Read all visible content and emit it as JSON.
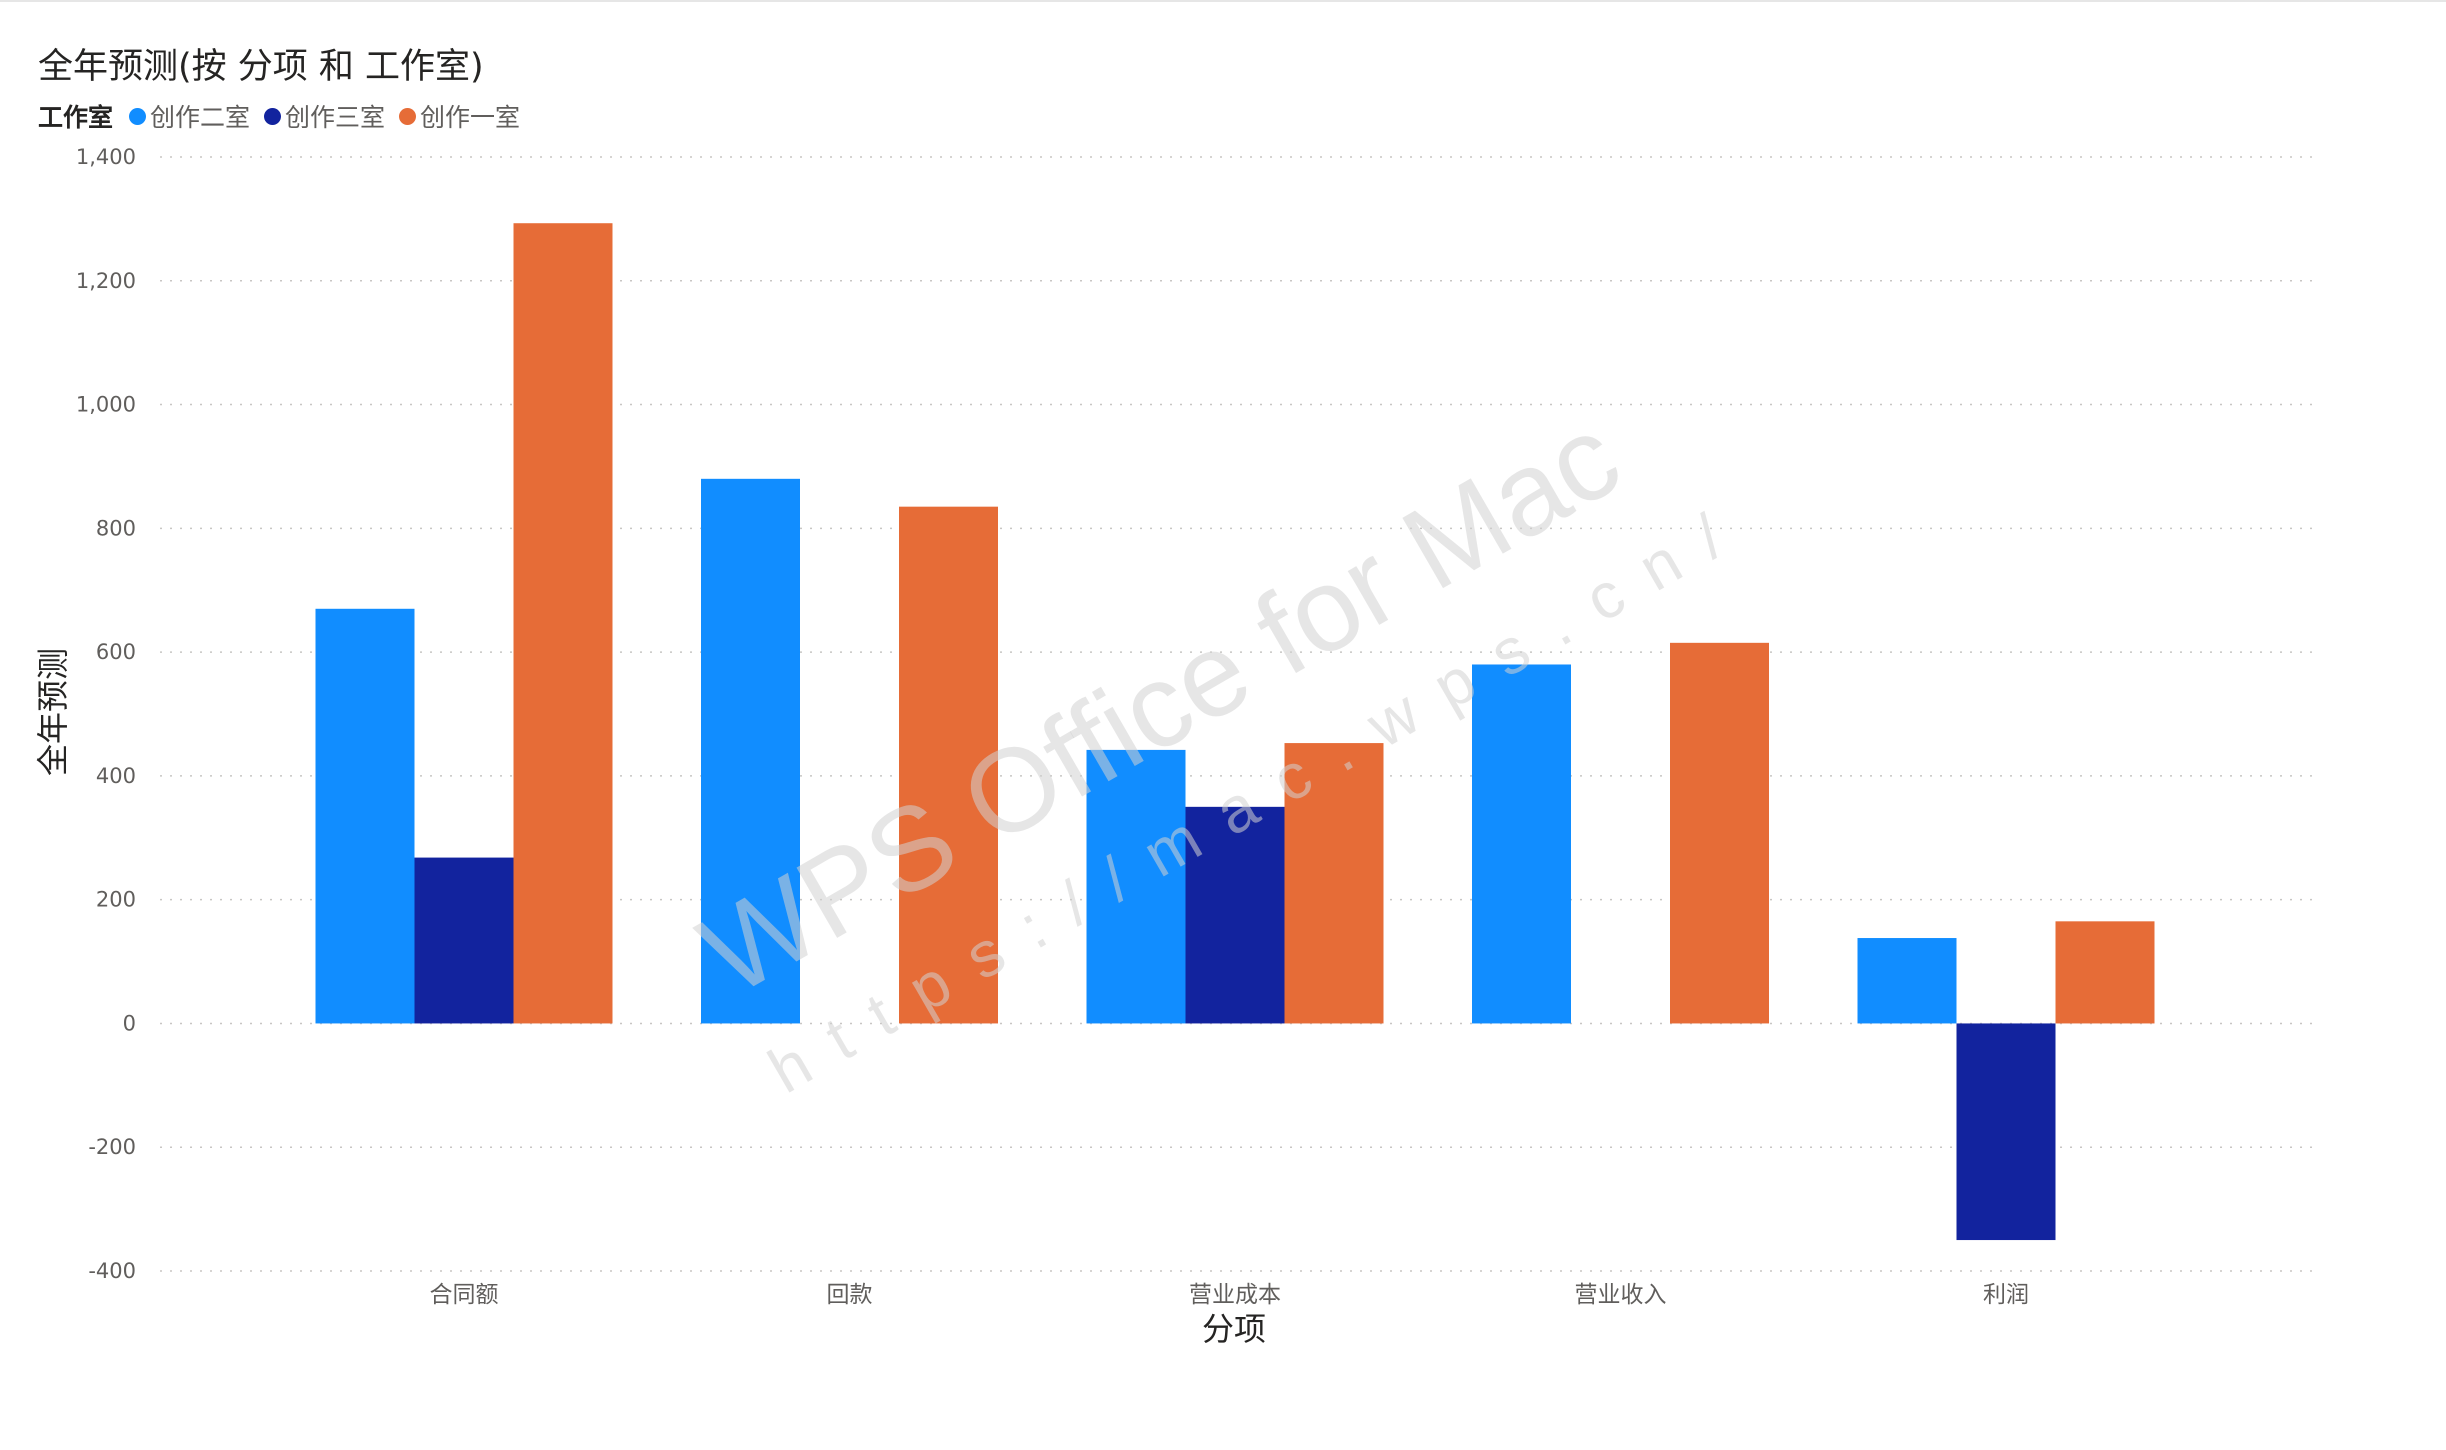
{
  "chart_data": {
    "type": "bar",
    "title": "全年预测(按 分项 和 工作室)",
    "legend_title": "工作室",
    "legend_position": "top-left",
    "xlabel": "分项",
    "ylabel": "全年预测",
    "categories": [
      "合同额",
      "回款",
      "营业成本",
      "营业收入",
      "利润"
    ],
    "series": [
      {
        "name": "创作二室",
        "color": "#118DFF",
        "values": [
          670,
          880,
          442,
          580,
          138
        ]
      },
      {
        "name": "创作三室",
        "color": "#12239E",
        "values": [
          268,
          null,
          350,
          null,
          -350
        ]
      },
      {
        "name": "创作一室",
        "color": "#E66C37",
        "values": [
          1293,
          835,
          453,
          615,
          165
        ]
      }
    ],
    "ylim": [
      -400,
      1400
    ],
    "yticks": [
      -400,
      -200,
      0,
      200,
      400,
      600,
      800,
      1000,
      1200,
      1400
    ],
    "ytick_labels": [
      "-400",
      "-200",
      "0",
      "200",
      "400",
      "600",
      "800",
      "1,000",
      "1,200",
      "1,400"
    ],
    "grid": true
  },
  "watermark": {
    "main": "WPS Office for Mac",
    "url": "https://mac.wps.cn/"
  }
}
